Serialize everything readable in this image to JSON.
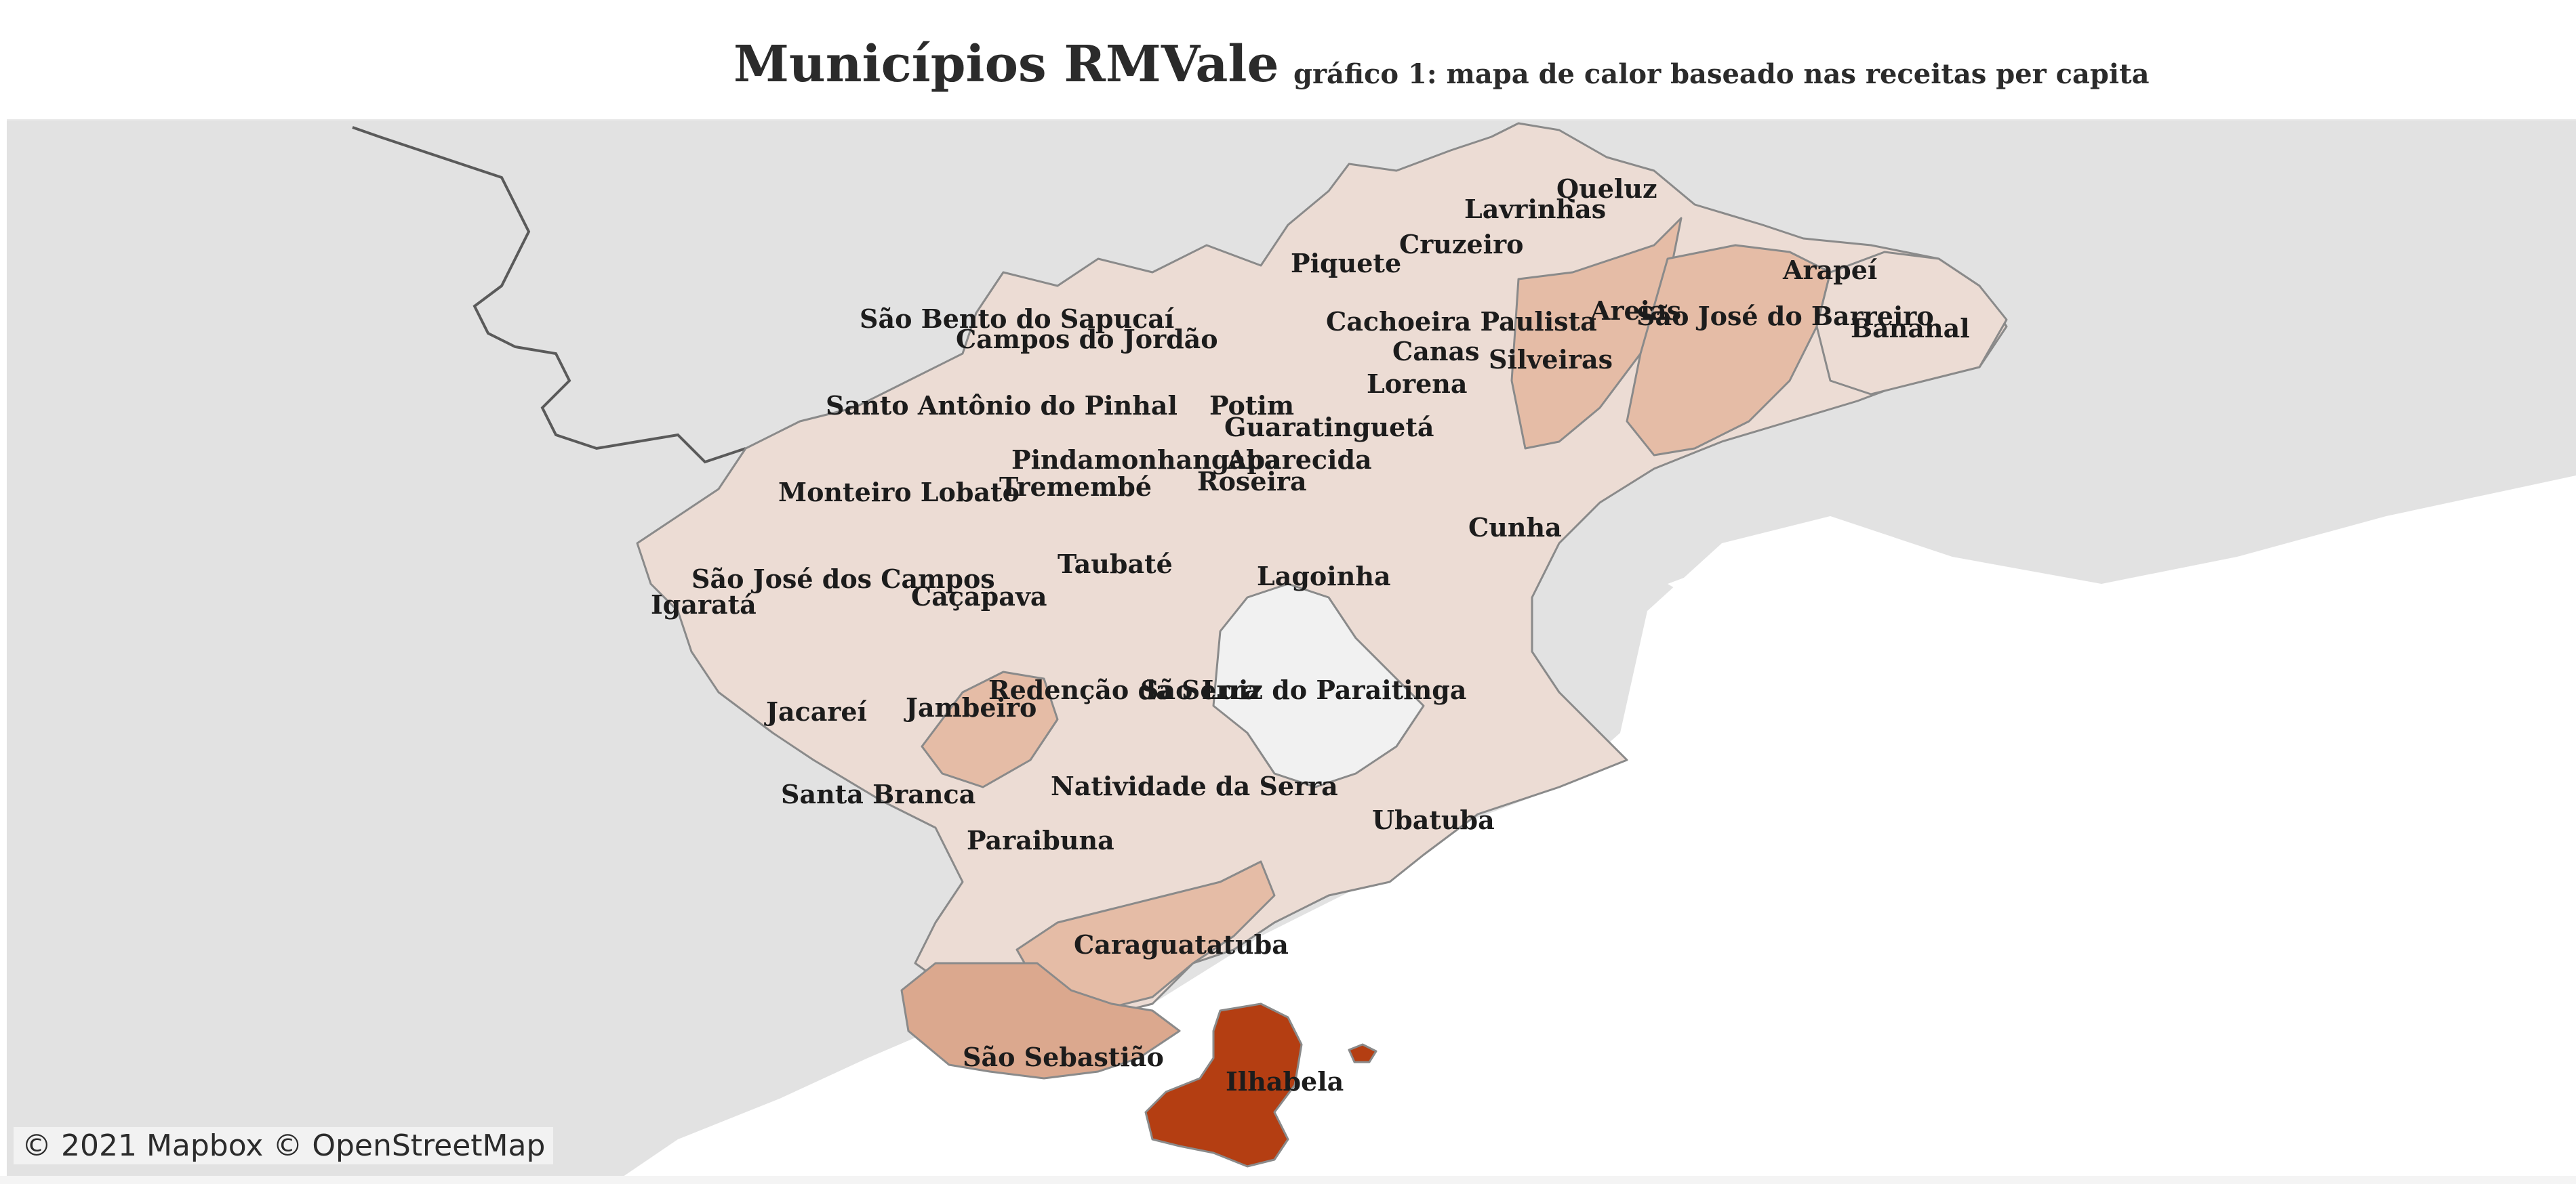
{
  "header": {
    "title": "Municípios RMVale",
    "subtitle": "gráfico 1: mapa de calor baseado nas receitas per capita"
  },
  "attribution": "© 2021 Mapbox  © OpenStreetMap",
  "colors": {
    "ocean": "#ffffff",
    "land": "#e4e4e4",
    "border_line": "#5a5a5a",
    "region_light": "#ecdcd4",
    "region_mid": "#e5bca6",
    "region_medium": "#dba88e",
    "region_dark": "#b43e12",
    "region_none": "#f1f1f1"
  },
  "municipalities": [
    {
      "name": "Queluz",
      "shade": "light"
    },
    {
      "name": "Lavrinhas",
      "shade": "light"
    },
    {
      "name": "Cruzeiro",
      "shade": "light"
    },
    {
      "name": "Piquete",
      "shade": "light"
    },
    {
      "name": "Arapeí",
      "shade": "light"
    },
    {
      "name": "São Bento do Sapucaí",
      "shade": "light"
    },
    {
      "name": "Campos do Jordão",
      "shade": "light"
    },
    {
      "name": "Cachoeira Paulista",
      "shade": "light"
    },
    {
      "name": "Areias",
      "shade": "mid"
    },
    {
      "name": "São José do Barreiro",
      "shade": "mid"
    },
    {
      "name": "Bananal",
      "shade": "light"
    },
    {
      "name": "Canas",
      "shade": "light"
    },
    {
      "name": "Silveiras",
      "shade": "mid"
    },
    {
      "name": "Lorena",
      "shade": "light"
    },
    {
      "name": "Santo Antônio do Pinhal",
      "shade": "light"
    },
    {
      "name": "Potim",
      "shade": "light"
    },
    {
      "name": "Guaratinguetá",
      "shade": "light"
    },
    {
      "name": "Pindamonhangaba",
      "shade": "light"
    },
    {
      "name": "Aparecida",
      "shade": "light"
    },
    {
      "name": "Monteiro Lobato",
      "shade": "light"
    },
    {
      "name": "Tremembé",
      "shade": "light"
    },
    {
      "name": "Roseira",
      "shade": "light"
    },
    {
      "name": "Cunha",
      "shade": "light"
    },
    {
      "name": "Taubaté",
      "shade": "light"
    },
    {
      "name": "Lagoinha",
      "shade": "light"
    },
    {
      "name": "São José dos Campos",
      "shade": "light"
    },
    {
      "name": "Caçapava",
      "shade": "light"
    },
    {
      "name": "Igaratá",
      "shade": "light"
    },
    {
      "name": "Redenção da Serra",
      "shade": "light"
    },
    {
      "name": "São Luiz do Paraitinga",
      "shade": "none"
    },
    {
      "name": "Jacareí",
      "shade": "light"
    },
    {
      "name": "Jambeiro",
      "shade": "mid"
    },
    {
      "name": "Natividade da Serra",
      "shade": "light"
    },
    {
      "name": "Santa Branca",
      "shade": "light"
    },
    {
      "name": "Ubatuba",
      "shade": "light"
    },
    {
      "name": "Paraibuna",
      "shade": "light"
    },
    {
      "name": "Caraguatatuba",
      "shade": "mid"
    },
    {
      "name": "São Sebastião",
      "shade": "medium"
    },
    {
      "name": "Ilhabela",
      "shade": "dark"
    }
  ]
}
